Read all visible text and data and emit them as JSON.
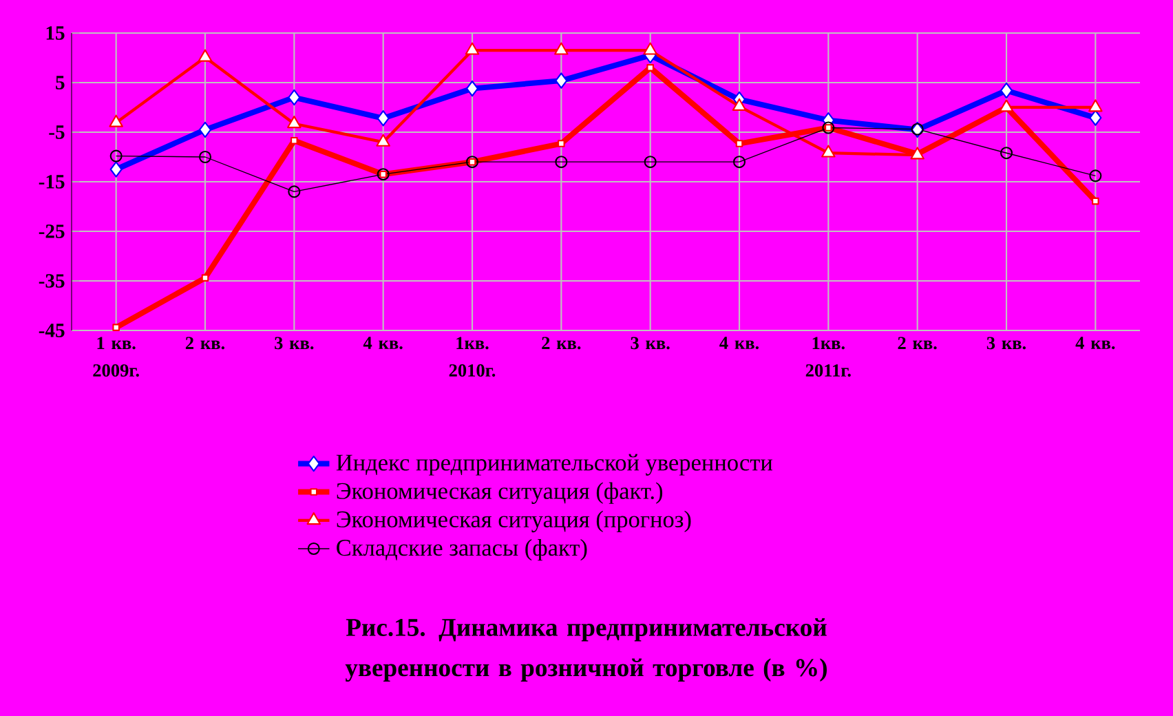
{
  "chart_data": {
    "type": "line",
    "title": "Рис.15. Динамика предпринимательской уверенности в розничной торговле (в %)",
    "categories": [
      "1 кв. 2009г.",
      "2 кв.",
      "3 кв.",
      "4 кв.",
      "1кв. 2010г.",
      "2 кв.",
      "3 кв.",
      "4 кв.",
      "1кв. 2011г.",
      "2 кв.",
      "3 кв.",
      "4 кв."
    ],
    "series": [
      {
        "name": "Индекс предпринимательской уверенности",
        "color": "#0000ff",
        "marker": "diamond",
        "values": [
          -12.5,
          -4.5,
          2,
          -2.2,
          3.8,
          5.4,
          10.5,
          1.6,
          -2.6,
          -4.5,
          3.4,
          -2.1
        ]
      },
      {
        "name": "Экономическая ситуация (факт.)",
        "color": "#ff0000",
        "marker": "square",
        "values": [
          -44.4,
          -34.4,
          -6.7,
          -13.5,
          -11,
          -7.3,
          8,
          -7.3,
          -4.1,
          -9.4,
          0,
          -18.9
        ]
      },
      {
        "name": "Экономическая ситуация (прогноз)",
        "color": "#ff0000",
        "marker": "triangle",
        "values": [
          -3.1,
          10.1,
          -3.3,
          -7,
          11.5,
          11.5,
          11.5,
          0.2,
          -9.2,
          -9.6,
          0,
          0
        ]
      },
      {
        "name": "Складские запасы (факт)",
        "color": "#000000",
        "marker": "circle",
        "values": [
          -9.8,
          -10,
          -17,
          -13.5,
          -11,
          -11,
          -11,
          -11,
          -4.1,
          -4.4,
          -9.2,
          -13.8
        ]
      }
    ],
    "ylim": [
      -45,
      15
    ],
    "yticks": [
      -45,
      -35,
      -25,
      -15,
      -5,
      5,
      15
    ],
    "grid": true,
    "legend": "bottom"
  }
}
